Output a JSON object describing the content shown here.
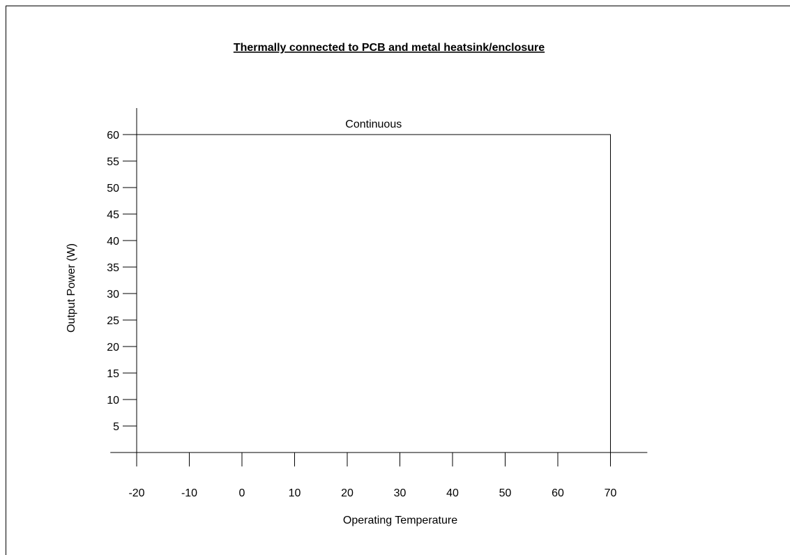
{
  "chart_data": {
    "type": "line",
    "title": "Thermally connected to PCB and metal heatsink/enclosure",
    "xlabel": "Operating Temperature",
    "ylabel": "Output Power (W)",
    "xlim": [
      -25,
      77
    ],
    "ylim": [
      0,
      65
    ],
    "x_ticks": [
      -20,
      -10,
      0,
      10,
      20,
      30,
      40,
      50,
      60,
      70
    ],
    "y_ticks": [
      5,
      10,
      15,
      20,
      25,
      30,
      35,
      40,
      45,
      50,
      55,
      60
    ],
    "grid": false,
    "series": [
      {
        "x": [
          -20,
          70,
          70
        ],
        "y": [
          60,
          60,
          0
        ],
        "annotation": "Continuous"
      }
    ],
    "colors": {
      "line": "#000000",
      "background": "#ffffff"
    }
  }
}
